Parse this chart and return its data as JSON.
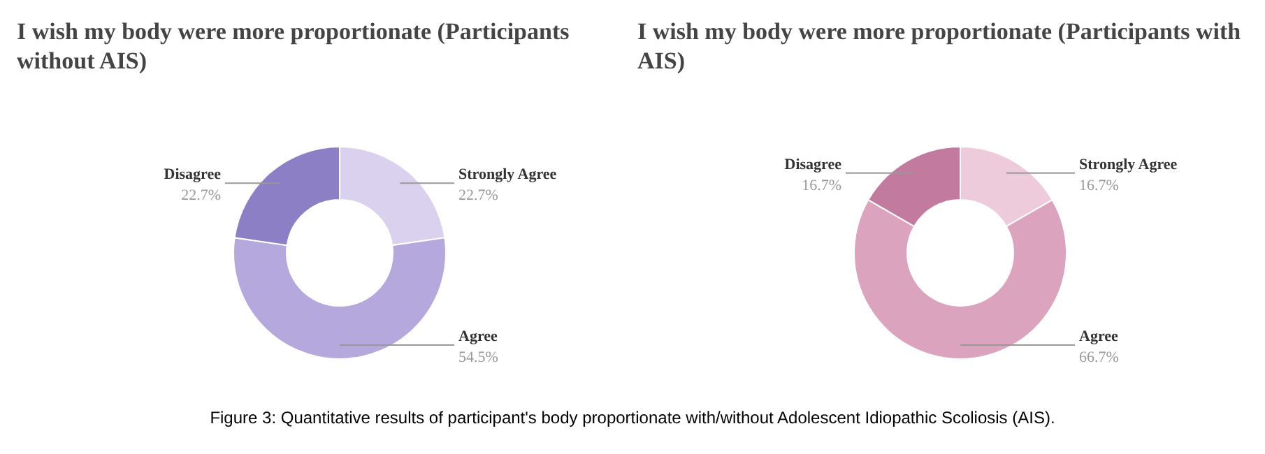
{
  "chart_data": [
    {
      "type": "donut",
      "title": "I wish my body were more proportionate (Participants without AIS)",
      "categories": [
        "Strongly Agree",
        "Agree",
        "Disagree"
      ],
      "values": [
        22.7,
        54.5,
        22.7
      ],
      "value_labels": [
        "22.7%",
        "54.5%",
        "22.7%"
      ],
      "colors": [
        "#d9d1ee",
        "#b4a8dd",
        "#8d7fc6"
      ],
      "legend": false
    },
    {
      "type": "donut",
      "title": "I wish my body were more proportionate (Participants with AIS)",
      "categories": [
        "Strongly Agree",
        "Agree",
        "Disagree"
      ],
      "values": [
        16.7,
        66.7,
        16.7
      ],
      "value_labels": [
        "16.7%",
        "66.7%",
        "16.7%"
      ],
      "colors": [
        "#eecbda",
        "#dba3be",
        "#c27b9f"
      ],
      "legend": false,
      "annotations": [
        "Figure 3: Quantitative results of participant's body proportionate with/without Adolescent Idiopathic Scoliosis (AIS)."
      ]
    }
  ]
}
